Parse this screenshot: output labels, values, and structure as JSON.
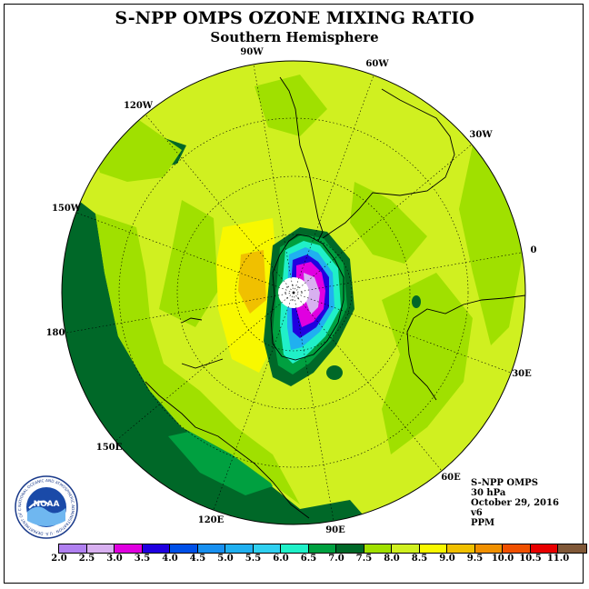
{
  "title": "S-NPP OMPS OZONE MIXING RATIO",
  "subtitle": "Southern Hemisphere",
  "longitude_labels": [
    "90W",
    "60W",
    "30W",
    "0",
    "30E",
    "60E",
    "90E",
    "120E",
    "150E",
    "180",
    "150W",
    "120W"
  ],
  "info": {
    "instrument": "S-NPP OMPS",
    "level": "30 hPa",
    "date": "October 29, 2016",
    "version": "v6",
    "units": "PPM"
  },
  "logo": {
    "text": "NOAA",
    "ring_text": "NATIONAL OCEANIC AND ATMOSPHERIC ADMINISTRATION · U.S. DEPARTMENT OF COMMERCE"
  },
  "colorbar": {
    "labels": [
      "2.0",
      "2.5",
      "3.0",
      "3.5",
      "4.0",
      "4.5",
      "5.0",
      "5.5",
      "6.0",
      "6.5",
      "7.0",
      "7.5",
      "8.0",
      "8.5",
      "9.0",
      "9.5",
      "10.0",
      "10.5",
      "11.0"
    ],
    "colors": [
      "#b080f0",
      "#d8b0f0",
      "#e000e0",
      "#2000e0",
      "#0050e8",
      "#1890f0",
      "#20b0f0",
      "#30d0f0",
      "#20f0c8",
      "#00a040",
      "#006828",
      "#a0e000",
      "#d0f020",
      "#f8f800",
      "#f0c000",
      "#f09000",
      "#f05000",
      "#e80000",
      "#805838"
    ]
  }
}
